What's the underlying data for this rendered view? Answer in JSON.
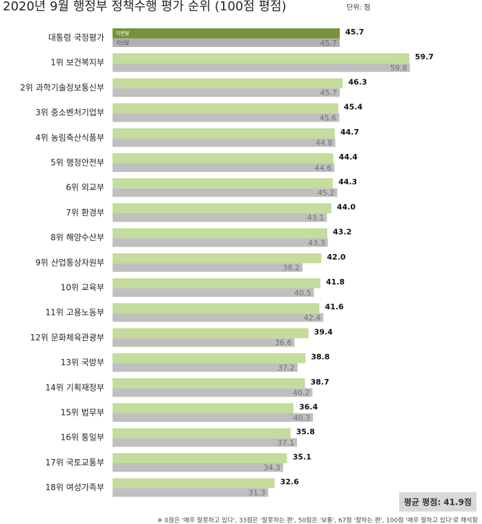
{
  "chart_data": {
    "type": "bar",
    "orientation": "horizontal",
    "title": "2020년 9월 행정부 정책수행 평가 순위 (100점 평점)",
    "unit": "단위: 점",
    "categories": [
      "대통령 국정평가",
      "1위 보건복지부",
      "2위 과학기술정보통신부",
      "3위 중소벤처기업부",
      "4위 농림축산식품부",
      "5위 행정안전부",
      "6위 외교부",
      "7위 환경부",
      "8위 해양수산부",
      "9위 산업통상자원부",
      "10위 교육부",
      "11위 고용노동부",
      "12위 문화체육관광부",
      "13위 국방부",
      "14위 기획재정부",
      "15위 법무부",
      "16위 통일부",
      "17위 국토교통부",
      "18위 여성가족부"
    ],
    "series": [
      {
        "name": "이번달",
        "color": "#c4dc9c",
        "highlight_color": "#76923c",
        "values": [
          45.7,
          59.7,
          46.3,
          45.4,
          44.7,
          44.4,
          44.3,
          44.0,
          43.2,
          42.0,
          41.8,
          41.6,
          39.4,
          38.8,
          38.7,
          36.4,
          35.8,
          35.1,
          32.6
        ],
        "value_labels": [
          "45.7",
          "59.7",
          "46.3",
          "45.4",
          "44.7",
          "44.4",
          "44.3",
          "44.0",
          "43.2",
          "42.0",
          "41.8",
          "41.6",
          "39.4",
          "38.8",
          "38.7",
          "36.4",
          "35.8",
          "35.1",
          "32.6"
        ]
      },
      {
        "name": "지난달",
        "color": "#bfbfbf",
        "highlight_color": "#b0b0b0",
        "values": [
          45.7,
          59.8,
          45.7,
          45.6,
          44.8,
          44.6,
          45.2,
          43.1,
          43.3,
          38.2,
          40.5,
          42.4,
          36.6,
          37.2,
          40.2,
          40.3,
          37.1,
          34.3,
          31.3
        ],
        "value_labels": [
          "45.7",
          "59.8",
          "45.7",
          "45.6",
          "44.8",
          "44.6",
          "45.2",
          "43.1",
          "43.3",
          "38.2",
          "40.5",
          "42.4",
          "36.6",
          "37.2",
          "40.2",
          "40.3",
          "37.1",
          "34.3",
          "31.3"
        ]
      }
    ],
    "xlim": [
      0,
      60
    ],
    "average_label": "평균 평점: 41.9점",
    "footnote": "※ 0점은 '매우 잘못하고 있다', 33점은 '잘못하는 편', 50점은 '보통', 67점 '잘하는 편', 100점 '매우 잘하고 있다'로 해석함"
  }
}
